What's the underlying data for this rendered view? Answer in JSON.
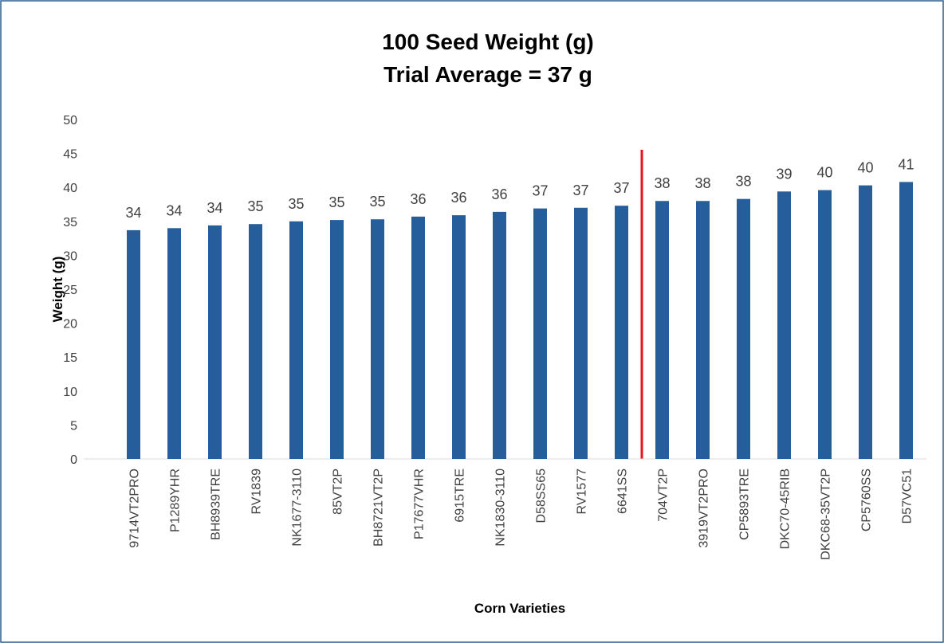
{
  "chart_data": {
    "type": "bar",
    "title": "100 Seed Weight (g)",
    "subtitle": "Trial Average = 37 g",
    "x_label": "Corn Varieties",
    "y_label": "Weight (g)",
    "categories": [
      "9714VT2PRO",
      "P1289YHR",
      "BH8939TRE",
      "RV1839",
      "NK1677-3110",
      "85VT2P",
      "BH8721VT2P",
      "P17677VHR",
      "6915TRE",
      "NK1830-3110",
      "D58SS65",
      "RV1577",
      "6641SS",
      "704VT2P",
      "3919VT2PRO",
      "CP5893TRE",
      "DKC70-45RIB",
      "DKC68-35VT2P",
      "CP5760SS",
      "D57VC51"
    ],
    "values": [
      33.7,
      34.0,
      34.4,
      34.6,
      35.0,
      35.2,
      35.3,
      35.7,
      35.9,
      36.4,
      36.9,
      37.0,
      37.3,
      38.0,
      38.0,
      38.3,
      39.4,
      39.6,
      40.3,
      40.8
    ],
    "value_labels": [
      "34",
      "34",
      "34",
      "35",
      "35",
      "35",
      "35",
      "36",
      "36",
      "36",
      "37",
      "37",
      "37",
      "38",
      "38",
      "38",
      "39",
      "40",
      "40",
      "41"
    ],
    "color": "#255e9a",
    "ylim": [
      0,
      50
    ],
    "yticks": [
      0,
      5,
      10,
      15,
      20,
      25,
      30,
      35,
      40,
      45,
      50
    ],
    "grid": false
  }
}
